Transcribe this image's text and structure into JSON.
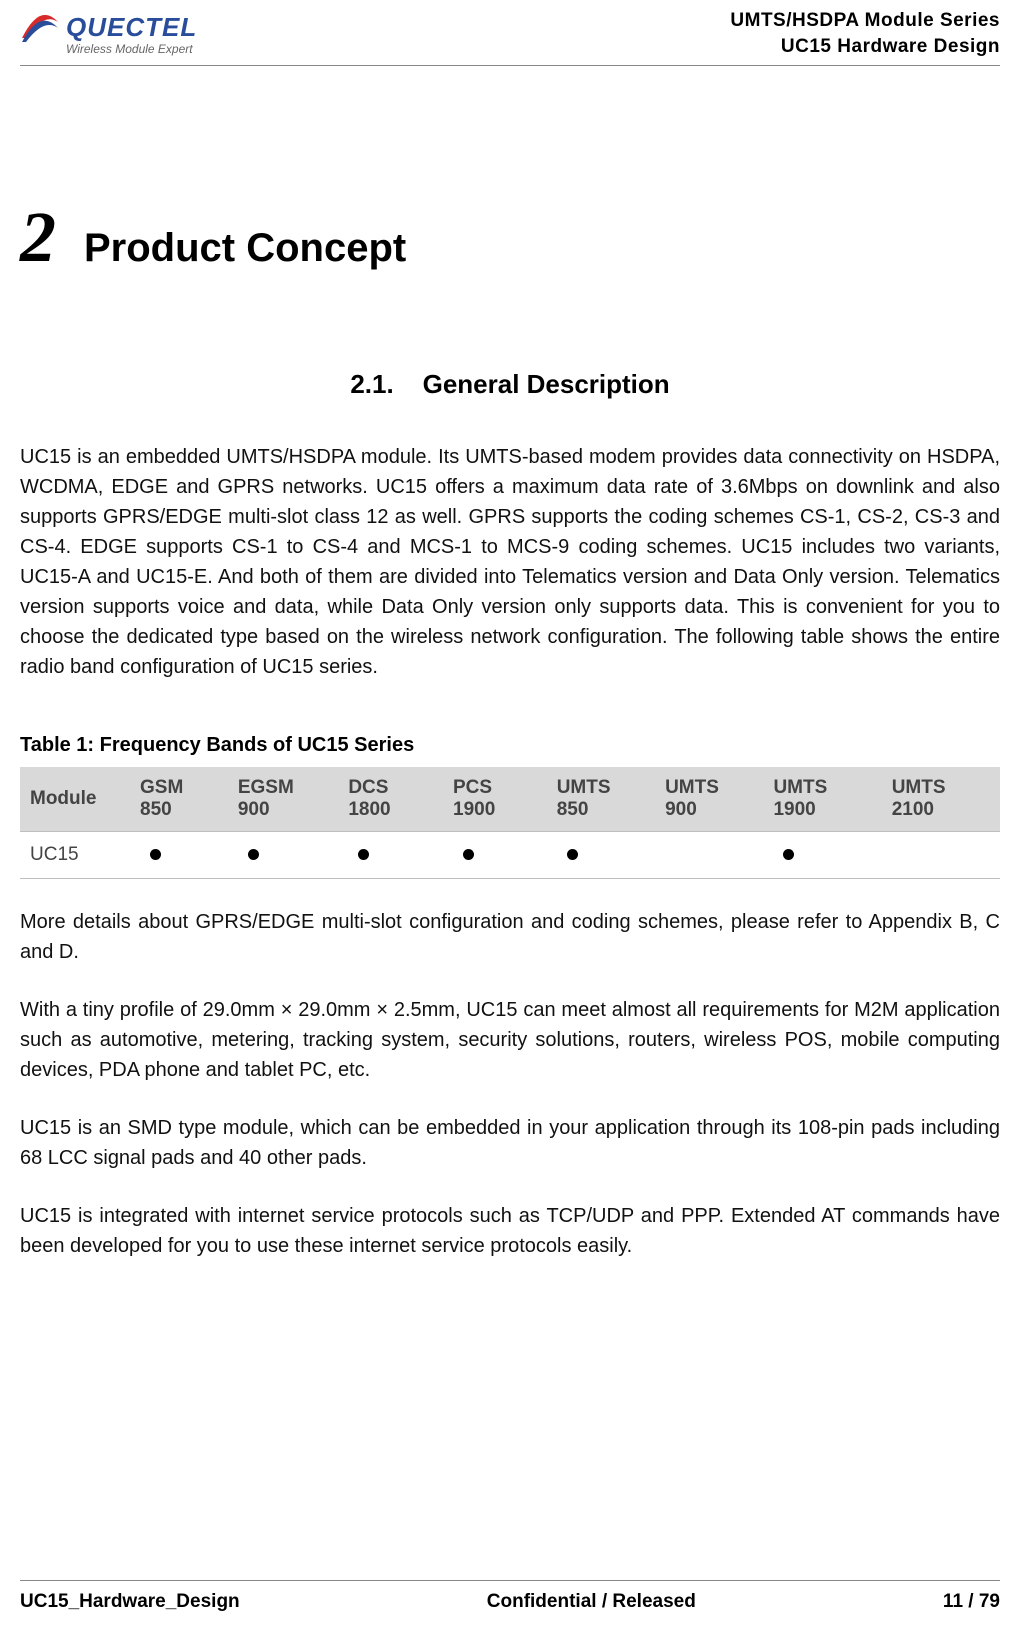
{
  "header": {
    "logo_text_main": "QUECTEL",
    "logo_tagline": "Wireless Module Expert",
    "right_line1": "UMTS/HSDPA  Module  Series",
    "right_line2": "UC15  Hardware  Design"
  },
  "chapter": {
    "number": "2",
    "title": "Product Concept"
  },
  "section": {
    "number": "2.1.",
    "title": "General Description"
  },
  "paragraphs": {
    "p1": "UC15 is an embedded UMTS/HSDPA module. Its UMTS-based modem provides data connectivity on HSDPA, WCDMA, EDGE and GPRS networks. UC15 offers a maximum data rate of 3.6Mbps on downlink and also supports GPRS/EDGE multi-slot class 12 as well. GPRS supports the coding schemes CS-1, CS-2, CS-3 and CS-4. EDGE supports CS-1 to CS-4 and MCS-1 to MCS-9 coding schemes. UC15 includes two variants, UC15-A and UC15-E. And both of them are divided into Telematics version and Data Only version. Telematics version supports voice and data, while Data Only version only supports data. This is convenient for you to choose the dedicated type based on the wireless network configuration. The following table shows the entire radio band configuration of UC15 series.",
    "p2": "More details about GPRS/EDGE multi-slot configuration and coding schemes, please refer to Appendix B, C and D.",
    "p3": "With a tiny profile of 29.0mm × 29.0mm × 2.5mm, UC15 can meet almost all requirements for M2M application such as automotive, metering, tracking system, security solutions, routers, wireless POS, mobile computing devices, PDA phone and tablet PC, etc.",
    "p4": "UC15 is an SMD type module, which can be embedded in your application through its 108-pin pads including 68 LCC signal pads and 40 other pads.",
    "p5": "UC15 is integrated with internet service protocols such as TCP/UDP and PPP. Extended AT commands have been developed for you to use these internet service protocols easily."
  },
  "table": {
    "caption": "Table 1: Frequency Bands of UC15 Series",
    "columns": [
      "Module",
      "GSM 850",
      "EGSM 900",
      "DCS 1800",
      "PCS 1900",
      "UMTS 850",
      "UMTS 900",
      "UMTS 1900",
      "UMTS 2100"
    ],
    "row_label": "UC15",
    "dots": [
      true,
      true,
      true,
      true,
      true,
      false,
      true,
      false
    ],
    "header_bg": "#d9d9d9",
    "border_color": "#bfbfbf",
    "text_color": "#444444"
  },
  "footer": {
    "left": "UC15_Hardware_Design",
    "center": "Confidential / Released",
    "right": "11 / 79"
  },
  "colors": {
    "text": "#111111",
    "logo_blue": "#2a4d9b",
    "logo_red": "#d82a2a",
    "rule": "#888888"
  }
}
